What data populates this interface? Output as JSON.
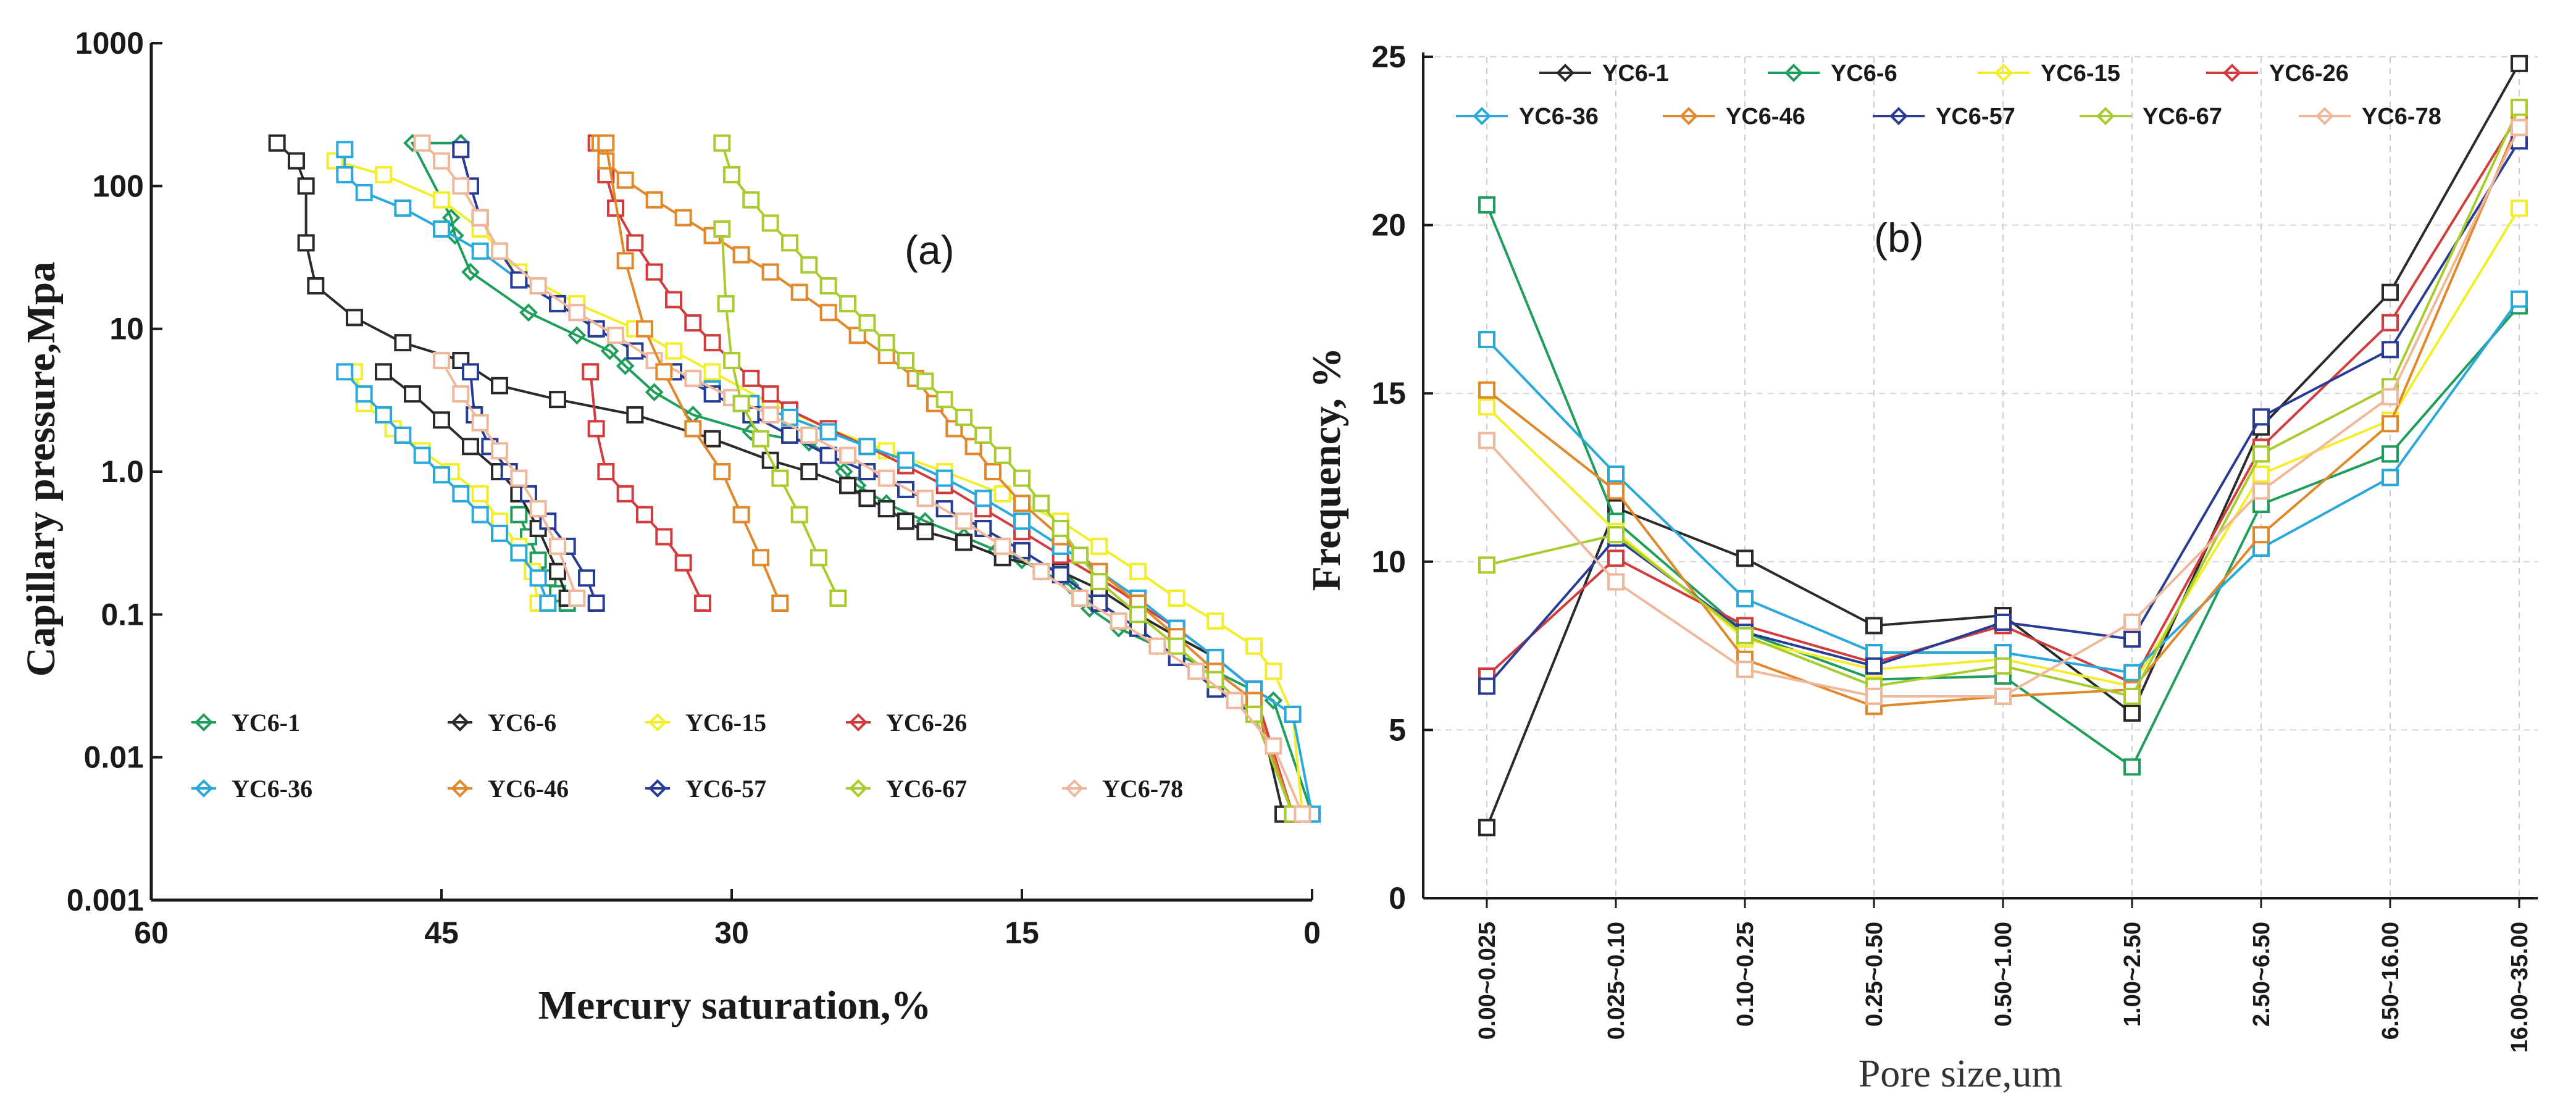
{
  "chart_data": [
    {
      "type": "line",
      "panel_label": "(a)",
      "xlabel": "Mercury saturation,%",
      "ylabel": "Capillary pressure,Mpa",
      "xlim": [
        60,
        0
      ],
      "ylim": [
        0.001,
        1000
      ],
      "yscale": "log",
      "x_ticks": [
        "60",
        "45",
        "30",
        "15",
        "0"
      ],
      "y_ticks": [
        "0.001",
        "0.01",
        "0.1",
        "1.0",
        "10",
        "100",
        "1000"
      ],
      "pressures": [
        180,
        150,
        120,
        100,
        80,
        60,
        45,
        35,
        26,
        20,
        15,
        11,
        8,
        6,
        4.5,
        3.3,
        2.4,
        1.8,
        1.3,
        1.0,
        0.75,
        0.55,
        0.42,
        0.32,
        0.25,
        0.19,
        0.15,
        0.12
      ],
      "series": [
        {
          "name": "YC6-1",
          "color": "#1e9e5a",
          "x": [
            44,
            46.5,
            44.5,
            44.3,
            43.5,
            40.5,
            38,
            36.3,
            35.5,
            34,
            32,
            29,
            26,
            25,
            24.2,
            23.5,
            22,
            20,
            18,
            16.3,
            15,
            14,
            12.5,
            12,
            11.5,
            10,
            8,
            5,
            2,
            0
          ],
          "y": [
            200,
            200,
            60,
            45,
            25,
            13,
            9,
            7,
            5.5,
            3.6,
            2.5,
            1.9,
            1.6,
            1.3,
            1,
            0.8,
            0.6,
            0.45,
            0.35,
            0.28,
            0.24,
            0.2,
            0.16,
            0.13,
            0.11,
            0.08,
            0.06,
            0.04,
            0.025,
            0.004
          ]
        },
        {
          "name": "YC6-6",
          "color": "#2a2a2a",
          "x": [
            53.5,
            52.5,
            52,
            52,
            51.5,
            49.5,
            47,
            44,
            42,
            39,
            35,
            31,
            28,
            26,
            24,
            23,
            22,
            21,
            20,
            18,
            16,
            13,
            11,
            9,
            7,
            5,
            3,
            1.5
          ],
          "y": [
            200,
            150,
            100,
            40,
            20,
            12,
            8,
            6,
            4,
            3.2,
            2.5,
            1.7,
            1.2,
            1.0,
            0.8,
            0.65,
            0.55,
            0.45,
            0.38,
            0.32,
            0.25,
            0.2,
            0.15,
            0.1,
            0.07,
            0.05,
            0.03,
            0.004
          ]
        },
        {
          "name": "YC6-15",
          "color": "#f3ee2a",
          "x": [
            50.5,
            48,
            45,
            43,
            41,
            38,
            35,
            33,
            31,
            28,
            25,
            22,
            19,
            16,
            13,
            11,
            9,
            7,
            5,
            3,
            2,
            1,
            0.5
          ],
          "y": [
            150,
            120,
            80,
            50,
            25,
            15,
            10,
            7,
            5,
            3,
            2,
            1.4,
            1.0,
            0.7,
            0.45,
            0.3,
            0.2,
            0.13,
            0.09,
            0.06,
            0.04,
            0.02,
            0.004
          ]
        },
        {
          "name": "YC6-26",
          "color": "#d23c3c",
          "x": [
            37,
            36.5,
            36,
            35,
            34,
            33,
            32,
            31,
            30,
            29,
            28,
            27,
            25,
            23,
            21,
            19,
            17,
            15,
            13,
            11,
            9,
            7,
            5,
            3,
            1
          ],
          "y": [
            200,
            120,
            70,
            40,
            25,
            16,
            11,
            8,
            6,
            4.5,
            3.5,
            2.7,
            2,
            1.5,
            1.1,
            0.8,
            0.55,
            0.38,
            0.26,
            0.18,
            0.12,
            0.08,
            0.05,
            0.03,
            0.004
          ]
        },
        {
          "name": "YC6-36",
          "color": "#29a8dc",
          "x": [
            50,
            50,
            49,
            47,
            45,
            43,
            41,
            39,
            37,
            35,
            33,
            31,
            29,
            27,
            25,
            23,
            21,
            19,
            17,
            15,
            13,
            11,
            9,
            7,
            5,
            3,
            1,
            0
          ],
          "y": [
            180,
            120,
            90,
            70,
            50,
            35,
            22,
            15,
            10,
            7,
            5,
            3.8,
            3,
            2.4,
            1.9,
            1.5,
            1.2,
            0.9,
            0.65,
            0.45,
            0.3,
            0.2,
            0.13,
            0.08,
            0.05,
            0.03,
            0.02,
            0.004
          ]
        },
        {
          "name": "YC6-46",
          "color": "#e0882a",
          "x": [
            36.8,
            36.5,
            35.5,
            34,
            32.5,
            31,
            29.5,
            28,
            26.5,
            25,
            23.5,
            22,
            20.5,
            19.5,
            18.5,
            17.5,
            16.5,
            15,
            13,
            11,
            9,
            7,
            5,
            3,
            1
          ],
          "y": [
            200,
            150,
            110,
            80,
            60,
            45,
            33,
            25,
            18,
            13,
            9,
            6.5,
            4.5,
            3,
            2,
            1.5,
            1,
            0.6,
            0.35,
            0.2,
            0.12,
            0.07,
            0.04,
            0.025,
            0.004
          ]
        },
        {
          "name": "YC6-57",
          "color": "#283c96",
          "x": [
            44,
            43.5,
            43,
            42,
            41,
            39,
            37,
            35,
            33,
            31,
            29,
            27,
            25,
            23,
            21,
            19,
            17,
            15,
            13,
            11,
            9,
            7,
            5,
            3,
            1
          ],
          "y": [
            180,
            100,
            60,
            35,
            22,
            15,
            10,
            7,
            5,
            3.5,
            2.5,
            1.8,
            1.3,
            1,
            0.75,
            0.55,
            0.4,
            0.28,
            0.19,
            0.12,
            0.08,
            0.05,
            0.03,
            0.02,
            0.004
          ]
        },
        {
          "name": "YC6-67",
          "color": "#a8cc2e",
          "x": [
            30.5,
            30,
            29,
            28,
            27,
            26,
            25,
            24,
            23,
            22,
            21,
            20,
            19,
            18,
            17,
            16,
            15,
            14,
            13,
            12,
            11,
            9,
            7,
            5,
            3,
            1
          ],
          "y": [
            200,
            120,
            80,
            55,
            40,
            28,
            20,
            15,
            11,
            8,
            6,
            4.3,
            3.2,
            2.4,
            1.8,
            1.3,
            0.9,
            0.6,
            0.4,
            0.26,
            0.17,
            0.1,
            0.06,
            0.035,
            0.02,
            0.004
          ]
        },
        {
          "name": "YC6-78",
          "color": "#f0b89a",
          "x": [
            46,
            45,
            44,
            43,
            42,
            40,
            38,
            36,
            34,
            32,
            30,
            28,
            26,
            24,
            22,
            20,
            18,
            16,
            14,
            12,
            10,
            8,
            6,
            4,
            2,
            0.5
          ],
          "y": [
            200,
            150,
            100,
            60,
            35,
            20,
            13,
            9,
            6,
            4.5,
            3.3,
            2.5,
            1.8,
            1.3,
            0.9,
            0.65,
            0.45,
            0.3,
            0.2,
            0.13,
            0.09,
            0.06,
            0.04,
            0.025,
            0.012,
            0.004
          ]
        }
      ],
      "extra_series": [
        {
          "name": "YC6-1",
          "color": "#1e9e5a",
          "x": [
            41,
            40.5,
            40,
            39.5,
            39,
            38.5
          ],
          "y": [
            0.5,
            0.35,
            0.24,
            0.18,
            0.14,
            0.12
          ]
        },
        {
          "name": "YC6-6",
          "color": "#2a2a2a",
          "x": [
            48,
            46.5,
            45,
            43.5,
            42,
            41,
            40,
            39,
            38.5
          ],
          "y": [
            5,
            3.5,
            2.3,
            1.5,
            1.0,
            0.7,
            0.4,
            0.2,
            0.13
          ]
        },
        {
          "name": "YC6-15",
          "color": "#f3ee2a",
          "x": [
            49.5,
            49,
            47.5,
            46,
            44.5,
            43,
            42,
            41,
            40.3,
            40
          ],
          "y": [
            5,
            3,
            2,
            1.4,
            1,
            0.7,
            0.45,
            0.3,
            0.2,
            0.12
          ]
        },
        {
          "name": "YC6-26",
          "color": "#d23c3c",
          "x": [
            37.3,
            37,
            36.5,
            35.5,
            34.5,
            33.5,
            32.5,
            31.5
          ],
          "y": [
            5,
            2,
            1,
            0.7,
            0.5,
            0.35,
            0.23,
            0.12
          ]
        },
        {
          "name": "YC6-36",
          "color": "#29a8dc",
          "x": [
            50,
            49,
            48,
            47,
            46,
            45,
            44,
            43,
            42,
            41,
            40,
            39.5
          ],
          "y": [
            5,
            3.5,
            2.5,
            1.8,
            1.3,
            0.95,
            0.7,
            0.5,
            0.37,
            0.27,
            0.18,
            0.12
          ]
        },
        {
          "name": "YC6-46",
          "color": "#e0882a",
          "x": [
            36.5,
            35.5,
            34.5,
            33.5,
            32,
            30.5,
            29.5,
            28.5,
            27.5
          ],
          "y": [
            200,
            30,
            10,
            5,
            2,
            1,
            0.5,
            0.25,
            0.12
          ]
        },
        {
          "name": "YC6-57",
          "color": "#283c96",
          "x": [
            43.5,
            43.3,
            42.5,
            41.5,
            40.5,
            39.5,
            38.5,
            37.5,
            37
          ],
          "y": [
            5,
            2.5,
            1.5,
            1,
            0.7,
            0.45,
            0.3,
            0.18,
            0.12
          ]
        },
        {
          "name": "YC6-67",
          "color": "#a8cc2e",
          "x": [
            30.5,
            30.3,
            30,
            29.5,
            28.5,
            27.5,
            26.5,
            25.5,
            24.5
          ],
          "y": [
            50,
            15,
            6,
            3,
            1.7,
            0.9,
            0.5,
            0.25,
            0.13
          ]
        },
        {
          "name": "YC6-78",
          "color": "#f0b89a",
          "x": [
            45,
            44,
            43,
            42,
            41,
            40,
            39,
            38
          ],
          "y": [
            6,
            3.5,
            2.2,
            1.4,
            0.9,
            0.55,
            0.3,
            0.13
          ]
        }
      ],
      "legend": [
        "YC6-1",
        "YC6-6",
        "YC6-15",
        "YC6-26",
        "YC6-36",
        "YC6-46",
        "YC6-57",
        "YC6-67",
        "YC6-78"
      ],
      "legend_placement": "bottom-left inside"
    },
    {
      "type": "line",
      "panel_label": "(b)",
      "xlabel": "Pore size,um",
      "ylabel": "Frequency, %",
      "ylim": [
        0,
        25
      ],
      "y_ticks": [
        "0",
        "5",
        "10",
        "15",
        "20",
        "25"
      ],
      "categories": [
        "0.00~0.025",
        "0.025~0.10",
        "0.10~0.25",
        "0.25~0.50",
        "0.50~1.00",
        "1.00~2.50",
        "2.50~6.50",
        "6.50~16.00",
        "16.00~35.00"
      ],
      "series": [
        {
          "name": "YC6-1",
          "color": "#2a2a2a",
          "values": [
            2.1,
            11.6,
            10.1,
            8.1,
            8.4,
            5.5,
            14.0,
            18.0,
            24.8
          ]
        },
        {
          "name": "YC6-6",
          "color": "#1e9e5a",
          "values": [
            20.6,
            11.2,
            7.9,
            6.5,
            6.6,
            3.9,
            11.7,
            13.2,
            17.6
          ]
        },
        {
          "name": "YC6-15",
          "color": "#f3ee2a",
          "values": [
            14.6,
            10.9,
            7.7,
            6.8,
            7.1,
            6.3,
            12.6,
            14.2,
            20.5
          ]
        },
        {
          "name": "YC6-26",
          "color": "#d23c3c",
          "values": [
            6.6,
            10.1,
            8.1,
            7.0,
            8.1,
            6.4,
            13.4,
            17.1,
            23.3
          ]
        },
        {
          "name": "YC6-36",
          "color": "#29a8dc",
          "values": [
            16.6,
            12.6,
            8.9,
            7.3,
            7.3,
            6.7,
            10.4,
            12.5,
            17.8
          ]
        },
        {
          "name": "YC6-46",
          "color": "#e0882a",
          "values": [
            15.1,
            12.1,
            7.1,
            5.7,
            6.0,
            6.2,
            10.8,
            14.1,
            23.1
          ]
        },
        {
          "name": "YC6-57",
          "color": "#283c96",
          "values": [
            6.3,
            10.7,
            7.9,
            6.9,
            8.2,
            7.7,
            14.3,
            16.3,
            22.5
          ]
        },
        {
          "name": "YC6-67",
          "color": "#a8cc2e",
          "values": [
            9.9,
            10.8,
            7.8,
            6.3,
            6.9,
            6.0,
            13.2,
            15.2,
            23.5
          ]
        },
        {
          "name": "YC6-78",
          "color": "#f0b89a",
          "values": [
            13.6,
            9.4,
            6.8,
            6.0,
            6.0,
            8.2,
            12.1,
            14.9,
            22.9
          ]
        }
      ],
      "legend": [
        "YC6-1",
        "YC6-6",
        "YC6-15",
        "YC6-26",
        "YC6-36",
        "YC6-46",
        "YC6-57",
        "YC6-67",
        "YC6-78"
      ],
      "legend_placement": "top"
    }
  ]
}
